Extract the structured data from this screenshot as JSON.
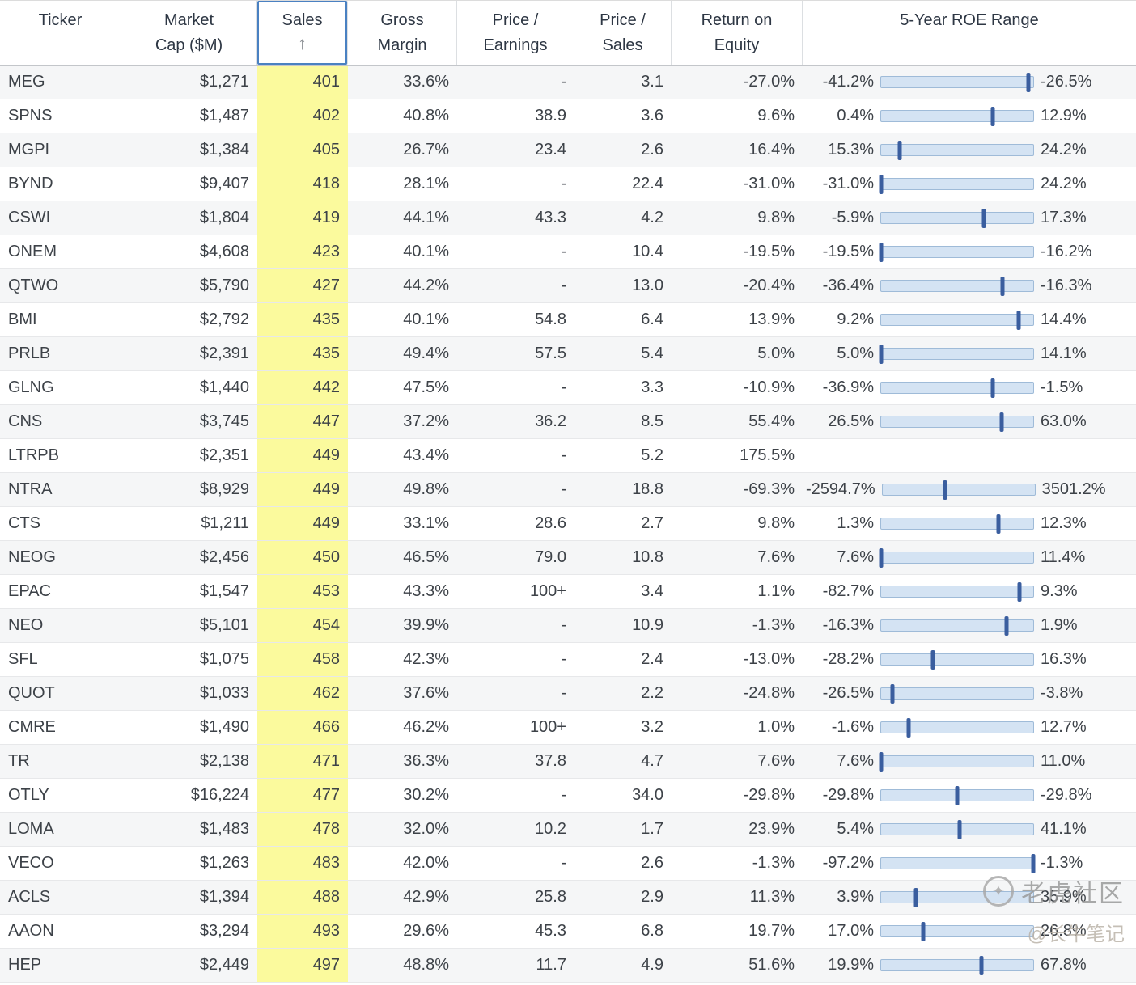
{
  "colors": {
    "sales_highlight": "#fbfa9d",
    "sort_outline": "#4a81c2",
    "bar_fill": "#d4e3f3",
    "bar_border": "#9fbbd8",
    "bar_marker": "#3a5e9f",
    "row_alt": "#f5f6f7"
  },
  "table": {
    "sort_icon": "↑",
    "sorted_column": "Sales",
    "sort_direction": "ascending",
    "columns": [
      {
        "id": "ticker",
        "lines": [
          "Ticker"
        ]
      },
      {
        "id": "market_cap",
        "lines": [
          "Market",
          "Cap ($M)"
        ]
      },
      {
        "id": "sales",
        "lines": [
          "Sales"
        ]
      },
      {
        "id": "gross_margin",
        "lines": [
          "Gross",
          "Margin"
        ]
      },
      {
        "id": "price_earnings",
        "lines": [
          "Price /",
          "Earnings"
        ]
      },
      {
        "id": "price_sales",
        "lines": [
          "Price /",
          "Sales"
        ]
      },
      {
        "id": "return_on_equity",
        "lines": [
          "Return on",
          "Equity"
        ]
      },
      {
        "id": "roe_range",
        "lines": [
          "5-Year ROE Range"
        ]
      }
    ],
    "rows": [
      {
        "ticker": "MEG",
        "market_cap": "$1,271",
        "sales": "401",
        "gross_margin": "33.6%",
        "pe": "-",
        "ps": "3.1",
        "roe": "-27.0%",
        "roe_min": "-41.2%",
        "roe_max": "-26.5%"
      },
      {
        "ticker": "SPNS",
        "market_cap": "$1,487",
        "sales": "402",
        "gross_margin": "40.8%",
        "pe": "38.9",
        "ps": "3.6",
        "roe": "9.6%",
        "roe_min": "0.4%",
        "roe_max": "12.9%"
      },
      {
        "ticker": "MGPI",
        "market_cap": "$1,384",
        "sales": "405",
        "gross_margin": "26.7%",
        "pe": "23.4",
        "ps": "2.6",
        "roe": "16.4%",
        "roe_min": "15.3%",
        "roe_max": "24.2%"
      },
      {
        "ticker": "BYND",
        "market_cap": "$9,407",
        "sales": "418",
        "gross_margin": "28.1%",
        "pe": "-",
        "ps": "22.4",
        "roe": "-31.0%",
        "roe_min": "-31.0%",
        "roe_max": "24.2%"
      },
      {
        "ticker": "CSWI",
        "market_cap": "$1,804",
        "sales": "419",
        "gross_margin": "44.1%",
        "pe": "43.3",
        "ps": "4.2",
        "roe": "9.8%",
        "roe_min": "-5.9%",
        "roe_max": "17.3%"
      },
      {
        "ticker": "ONEM",
        "market_cap": "$4,608",
        "sales": "423",
        "gross_margin": "40.1%",
        "pe": "-",
        "ps": "10.4",
        "roe": "-19.5%",
        "roe_min": "-19.5%",
        "roe_max": "-16.2%"
      },
      {
        "ticker": "QTWO",
        "market_cap": "$5,790",
        "sales": "427",
        "gross_margin": "44.2%",
        "pe": "-",
        "ps": "13.0",
        "roe": "-20.4%",
        "roe_min": "-36.4%",
        "roe_max": "-16.3%"
      },
      {
        "ticker": "BMI",
        "market_cap": "$2,792",
        "sales": "435",
        "gross_margin": "40.1%",
        "pe": "54.8",
        "ps": "6.4",
        "roe": "13.9%",
        "roe_min": "9.2%",
        "roe_max": "14.4%"
      },
      {
        "ticker": "PRLB",
        "market_cap": "$2,391",
        "sales": "435",
        "gross_margin": "49.4%",
        "pe": "57.5",
        "ps": "5.4",
        "roe": "5.0%",
        "roe_min": "5.0%",
        "roe_max": "14.1%"
      },
      {
        "ticker": "GLNG",
        "market_cap": "$1,440",
        "sales": "442",
        "gross_margin": "47.5%",
        "pe": "-",
        "ps": "3.3",
        "roe": "-10.9%",
        "roe_min": "-36.9%",
        "roe_max": "-1.5%"
      },
      {
        "ticker": "CNS",
        "market_cap": "$3,745",
        "sales": "447",
        "gross_margin": "37.2%",
        "pe": "36.2",
        "ps": "8.5",
        "roe": "55.4%",
        "roe_min": "26.5%",
        "roe_max": "63.0%"
      },
      {
        "ticker": "LTRPB",
        "market_cap": "$2,351",
        "sales": "449",
        "gross_margin": "43.4%",
        "pe": "-",
        "ps": "5.2",
        "roe": "175.5%",
        "roe_min": "",
        "roe_max": ""
      },
      {
        "ticker": "NTRA",
        "market_cap": "$8,929",
        "sales": "449",
        "gross_margin": "49.8%",
        "pe": "-",
        "ps": "18.8",
        "roe": "-69.3%",
        "roe_min": "-2594.7%",
        "roe_max": "3501.2%"
      },
      {
        "ticker": "CTS",
        "market_cap": "$1,211",
        "sales": "449",
        "gross_margin": "33.1%",
        "pe": "28.6",
        "ps": "2.7",
        "roe": "9.8%",
        "roe_min": "1.3%",
        "roe_max": "12.3%"
      },
      {
        "ticker": "NEOG",
        "market_cap": "$2,456",
        "sales": "450",
        "gross_margin": "46.5%",
        "pe": "79.0",
        "ps": "10.8",
        "roe": "7.6%",
        "roe_min": "7.6%",
        "roe_max": "11.4%"
      },
      {
        "ticker": "EPAC",
        "market_cap": "$1,547",
        "sales": "453",
        "gross_margin": "43.3%",
        "pe": "100+",
        "ps": "3.4",
        "roe": "1.1%",
        "roe_min": "-82.7%",
        "roe_max": "9.3%"
      },
      {
        "ticker": "NEO",
        "market_cap": "$5,101",
        "sales": "454",
        "gross_margin": "39.9%",
        "pe": "-",
        "ps": "10.9",
        "roe": "-1.3%",
        "roe_min": "-16.3%",
        "roe_max": "1.9%"
      },
      {
        "ticker": "SFL",
        "market_cap": "$1,075",
        "sales": "458",
        "gross_margin": "42.3%",
        "pe": "-",
        "ps": "2.4",
        "roe": "-13.0%",
        "roe_min": "-28.2%",
        "roe_max": "16.3%"
      },
      {
        "ticker": "QUOT",
        "market_cap": "$1,033",
        "sales": "462",
        "gross_margin": "37.6%",
        "pe": "-",
        "ps": "2.2",
        "roe": "-24.8%",
        "roe_min": "-26.5%",
        "roe_max": "-3.8%"
      },
      {
        "ticker": "CMRE",
        "market_cap": "$1,490",
        "sales": "466",
        "gross_margin": "46.2%",
        "pe": "100+",
        "ps": "3.2",
        "roe": "1.0%",
        "roe_min": "-1.6%",
        "roe_max": "12.7%"
      },
      {
        "ticker": "TR",
        "market_cap": "$2,138",
        "sales": "471",
        "gross_margin": "36.3%",
        "pe": "37.8",
        "ps": "4.7",
        "roe": "7.6%",
        "roe_min": "7.6%",
        "roe_max": "11.0%"
      },
      {
        "ticker": "OTLY",
        "market_cap": "$16,224",
        "sales": "477",
        "gross_margin": "30.2%",
        "pe": "-",
        "ps": "34.0",
        "roe": "-29.8%",
        "roe_min": "-29.8%",
        "roe_max": "-29.8%"
      },
      {
        "ticker": "LOMA",
        "market_cap": "$1,483",
        "sales": "478",
        "gross_margin": "32.0%",
        "pe": "10.2",
        "ps": "1.7",
        "roe": "23.9%",
        "roe_min": "5.4%",
        "roe_max": "41.1%"
      },
      {
        "ticker": "VECO",
        "market_cap": "$1,263",
        "sales": "483",
        "gross_margin": "42.0%",
        "pe": "-",
        "ps": "2.6",
        "roe": "-1.3%",
        "roe_min": "-97.2%",
        "roe_max": "-1.3%"
      },
      {
        "ticker": "ACLS",
        "market_cap": "$1,394",
        "sales": "488",
        "gross_margin": "42.9%",
        "pe": "25.8",
        "ps": "2.9",
        "roe": "11.3%",
        "roe_min": "3.9%",
        "roe_max": "35.9%"
      },
      {
        "ticker": "AAON",
        "market_cap": "$3,294",
        "sales": "493",
        "gross_margin": "29.6%",
        "pe": "45.3",
        "ps": "6.8",
        "roe": "19.7%",
        "roe_min": "17.0%",
        "roe_max": "26.8%"
      },
      {
        "ticker": "HEP",
        "market_cap": "$2,449",
        "sales": "497",
        "gross_margin": "48.8%",
        "pe": "11.7",
        "ps": "4.9",
        "roe": "51.6%",
        "roe_min": "19.9%",
        "roe_max": "67.8%"
      }
    ]
  },
  "watermark": {
    "logo_glyph": "✦",
    "brand": "老虎社区",
    "handle": "@长牛笔记"
  }
}
